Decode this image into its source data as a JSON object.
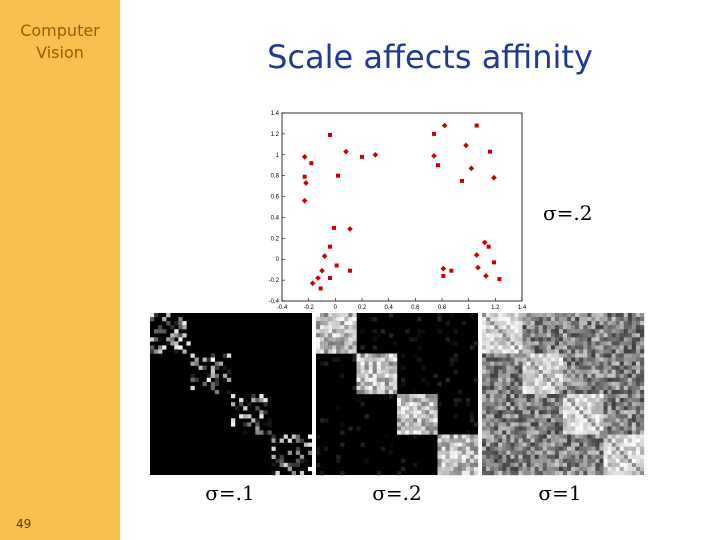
{
  "sidebar": {
    "title": "Computer Vision",
    "page": "49"
  },
  "title": "Scale affects affinity",
  "chart_data": {
    "type": "scatter",
    "color": "#cc0000",
    "x": [
      -0.04,
      -0.23,
      -0.18,
      0.08,
      0.2,
      0.3,
      -0.23,
      -0.22,
      0.02,
      -0.23,
      0.74,
      0.82,
      1.06,
      0.98,
      1.16,
      0.74,
      0.77,
      1.02,
      0.95,
      1.19,
      -0.01,
      0.11,
      -0.04,
      -0.08,
      0.01,
      -0.1,
      0.11,
      -0.13,
      -0.04,
      -0.17,
      -0.11,
      1.12,
      1.15,
      1.06,
      1.19,
      0.81,
      0.87,
      1.07,
      0.81,
      1.13,
      1.23
    ],
    "values": [
      1.19,
      0.98,
      0.92,
      1.03,
      0.98,
      1.0,
      0.79,
      0.73,
      0.8,
      0.56,
      1.2,
      1.28,
      1.28,
      1.09,
      1.03,
      0.99,
      0.9,
      0.87,
      0.75,
      0.78,
      0.3,
      0.29,
      0.12,
      0.03,
      -0.06,
      -0.11,
      -0.11,
      -0.18,
      -0.18,
      -0.23,
      -0.28,
      0.16,
      0.12,
      0.04,
      -0.03,
      -0.09,
      -0.11,
      -0.08,
      -0.16,
      -0.16,
      -0.19
    ],
    "xlim": [
      -0.4,
      1.4
    ],
    "ylim": [
      -0.4,
      1.4
    ],
    "xticks": [
      -0.4,
      -0.2,
      0,
      0.2,
      0.4,
      0.6,
      0.8,
      1,
      1.2,
      1.4
    ],
    "yticks": [
      -0.4,
      -0.2,
      0,
      0.2,
      0.4,
      0.6,
      0.8,
      1,
      1.2,
      1.4
    ],
    "annotation": "σ=.2"
  },
  "matrices": [
    {
      "label": "σ=.1"
    },
    {
      "label": "σ=.2"
    },
    {
      "label": "σ=1"
    }
  ]
}
